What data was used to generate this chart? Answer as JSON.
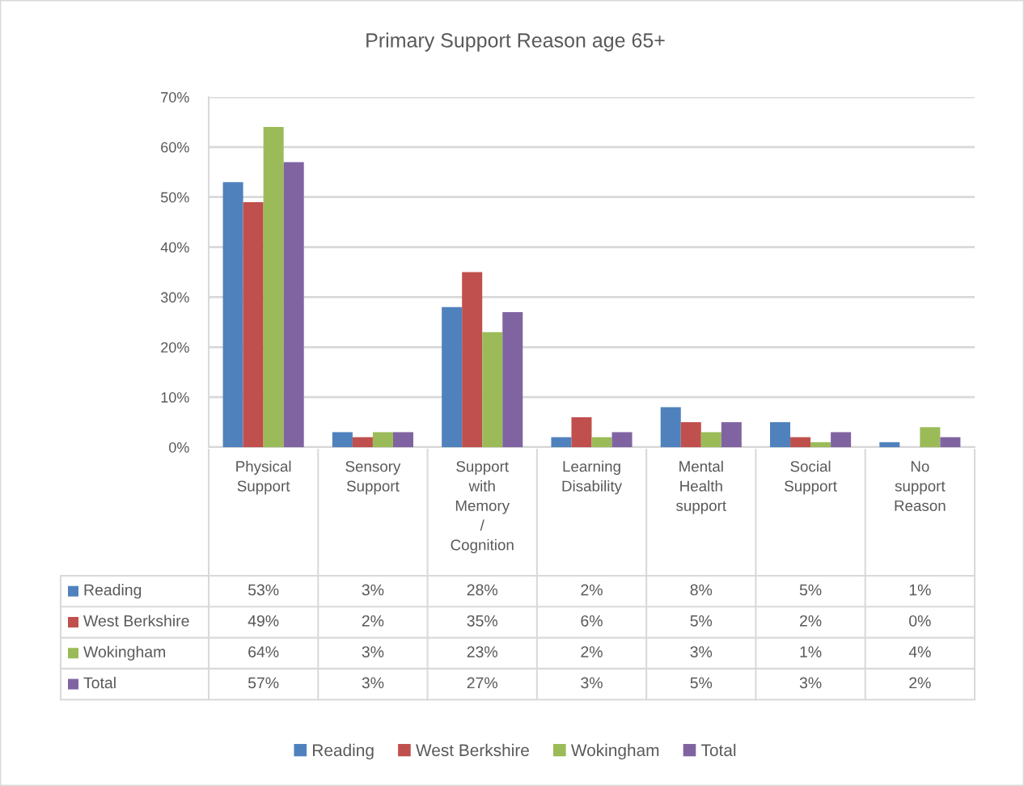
{
  "chart_data": {
    "type": "bar",
    "title": "Primary Support Reason age 65+",
    "categories": [
      "Physical Support",
      "Sensory Support",
      "Support with Memory / Cognition",
      "Learning Disability",
      "Mental Health support",
      "Social Support",
      "No support Reason"
    ],
    "series": [
      {
        "name": "Reading",
        "color": "#4f81bd",
        "values": [
          53,
          3,
          28,
          2,
          8,
          5,
          1
        ],
        "value_labels": [
          "53%",
          "3%",
          "28%",
          "2%",
          "8%",
          "5%",
          "1%"
        ]
      },
      {
        "name": "West Berkshire",
        "color": "#c0504d",
        "values": [
          49,
          2,
          35,
          6,
          5,
          2,
          0
        ],
        "value_labels": [
          "49%",
          "2%",
          "35%",
          "6%",
          "5%",
          "2%",
          "0%"
        ]
      },
      {
        "name": "Wokingham",
        "color": "#9bbb59",
        "values": [
          64,
          3,
          23,
          2,
          3,
          1,
          4
        ],
        "value_labels": [
          "64%",
          "3%",
          "23%",
          "2%",
          "3%",
          "1%",
          "4%"
        ]
      },
      {
        "name": "Total",
        "color": "#8064a2",
        "values": [
          57,
          3,
          27,
          3,
          5,
          3,
          2
        ],
        "value_labels": [
          "57%",
          "3%",
          "27%",
          "3%",
          "5%",
          "3%",
          "2%"
        ]
      }
    ],
    "ylim": [
      0,
      70
    ],
    "yticks": [
      {
        "value": 0,
        "label": "0%"
      },
      {
        "value": 10,
        "label": "10%"
      },
      {
        "value": 20,
        "label": "20%"
      },
      {
        "value": 30,
        "label": "30%"
      },
      {
        "value": 40,
        "label": "40%"
      },
      {
        "value": 50,
        "label": "50%"
      },
      {
        "value": 60,
        "label": "60%"
      },
      {
        "value": 70,
        "label": "70%"
      }
    ],
    "grid": "y",
    "legend": "bottom"
  }
}
